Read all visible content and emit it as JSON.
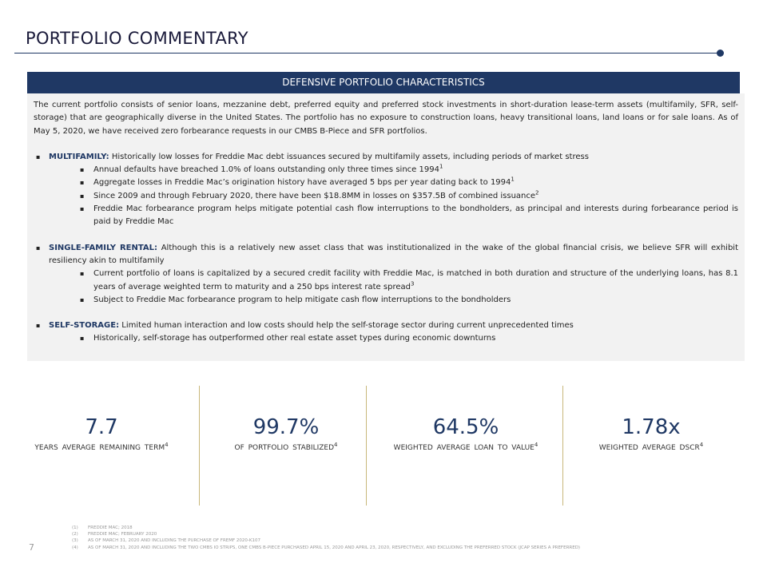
{
  "header": {
    "title": "PORTFOLIO COMMENTARY"
  },
  "panel": {
    "title": "DEFENSIVE PORTFOLIO CHARACTERISTICS",
    "intro": "The current portfolio consists of senior loans, mezzanine debt, preferred equity and preferred stock investments in short-duration lease-term assets (multifamily, SFR, self-storage) that are geographically diverse in the United States. The portfolio has no exposure to construction loans, heavy transitional loans, land loans or for sale loans. As of May 5, 2020, we have received zero forbearance requests in our CMBS B-Piece and SFR portfolios.",
    "sections": [
      {
        "label": "MULTIFAMILY:",
        "text": "Historically low losses for Freddie Mac debt issuances secured by multifamily assets, including periods of market stress",
        "bullets": [
          {
            "text": "Annual defaults have breached 1.0% of loans outstanding only three times since 1994",
            "note": "1"
          },
          {
            "text": "Aggregate losses in Freddie Mac’s origination history have averaged 5 bps per year dating back to 1994",
            "note": "1"
          },
          {
            "text": "Since 2009 and through February 2020, there have been $18.8MM in losses on $357.5B of combined issuance",
            "note": "2"
          },
          {
            "text": "Freddie Mac forbearance program helps mitigate potential cash flow interruptions to the bondholders, as principal and interests during forbearance period is paid by Freddie Mac"
          }
        ]
      },
      {
        "label": "SINGLE-FAMILY RENTAL:",
        "text": "Although this is a relatively new asset class that was institutionalized in the wake of the global financial crisis, we believe SFR will exhibit resiliency akin to multifamily",
        "bullets": [
          {
            "text": "Current portfolio of loans is capitalized by a secured credit facility with Freddie Mac, is matched in both duration and structure of the underlying loans, has 8.1 years of average weighted term to maturity and a 250 bps interest rate spread",
            "note": "3"
          },
          {
            "text": "Subject to Freddie Mac forbearance program to help mitigate cash flow interruptions to the bondholders"
          }
        ]
      },
      {
        "label": "SELF-STORAGE:",
        "text": "Limited human interaction and low costs should help the self-storage sector during current unprecedented times",
        "bullets": [
          {
            "text": "Historically, self-storage has outperformed other real estate asset types during economic downturns"
          }
        ]
      }
    ]
  },
  "stats": [
    {
      "value": "7.7",
      "label": "YEARS AVERAGE REMAINING TERM",
      "note": "4"
    },
    {
      "value": "99.7%",
      "label": "OF PORTFOLIO STABILIZED",
      "note": "4"
    },
    {
      "value": "64.5%",
      "label": "WEIGHTED AVERAGE LOAN TO VALUE",
      "note": "4"
    },
    {
      "value": "1.78x",
      "label": "WEIGHTED AVERAGE DSCR",
      "note": "4"
    }
  ],
  "footnotes": [
    {
      "number": "(1)",
      "text": "FREDDIE MAC; 2018"
    },
    {
      "number": "(2)",
      "text": "FREDDIE MAC; FEBRUARY 2020"
    },
    {
      "number": "(3)",
      "text": "AS OF MARCH 31, 2020 AND INCLUDING THE PURCHASE OF FREMF 2020-K107"
    },
    {
      "number": "(4)",
      "text": "AS OF MARCH 31, 2020 AND INCLUDING THE TWO CMBS IO STRIPS, ONE CMBS B-PIECE PURCHASED APRIL 15, 2020 AND APRIL 23, 2020, RESPECTIVELY, AND EXCLUDING THE PREFERRED STOCK (JCAP SERIES A PREFERRED)"
    }
  ],
  "page_number": "7"
}
